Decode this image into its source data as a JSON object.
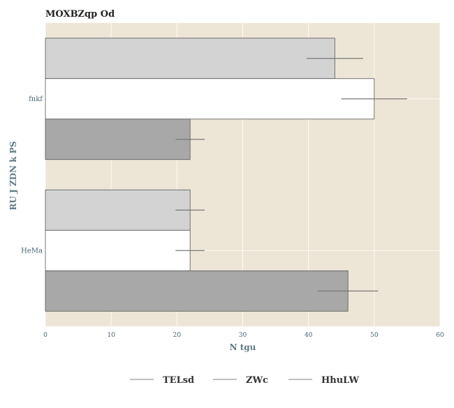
{
  "chart_data": {
    "type": "bar",
    "orientation": "horizontal",
    "title": "MOXBZqp Od",
    "xlabel": "N tgu",
    "ylabel": "RU J ZDN k PS",
    "categories": [
      "fnkf",
      "HeMa"
    ],
    "series": [
      {
        "name": "TELsd",
        "values": [
          44,
          22
        ],
        "errors": [
          4.3,
          2.2
        ],
        "color": "#d3d3d3"
      },
      {
        "name": "ZWc",
        "values": [
          50,
          22
        ],
        "errors": [
          5.0,
          2.2
        ],
        "color": "#ffffff"
      },
      {
        "name": "HhuLW",
        "values": [
          22,
          46
        ],
        "errors": [
          2.2,
          4.6
        ],
        "color": "#a8a8a8"
      }
    ],
    "xlim": [
      0,
      60
    ],
    "xticks": [
      "0",
      "10",
      "20",
      "30",
      "40",
      "50",
      "60"
    ],
    "grid": true,
    "legend_position": "bottom",
    "background": "#ede6d6"
  }
}
